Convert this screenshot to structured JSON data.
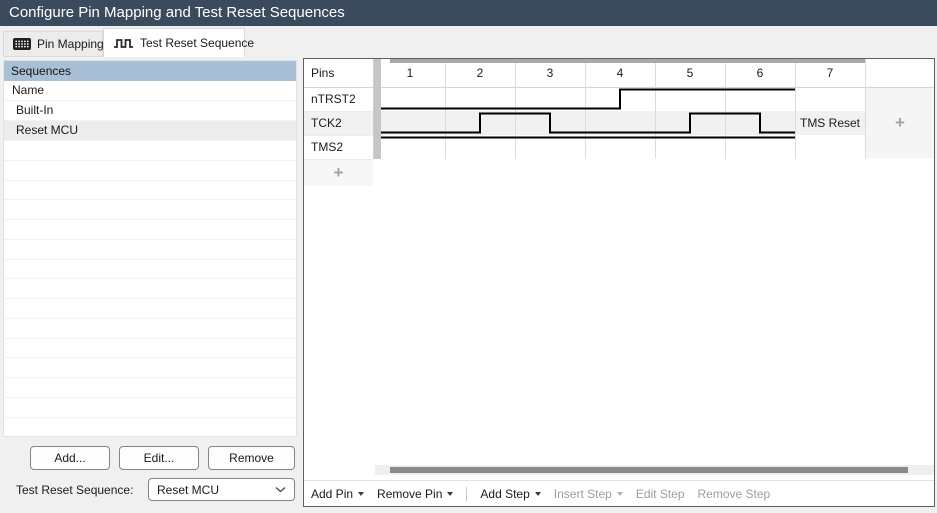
{
  "title_bar": {
    "title": "Configure Pin Mapping and Test Reset Sequences"
  },
  "tabs": [
    {
      "label": "Pin Mapping",
      "icon": "pin-grid-icon",
      "active": false
    },
    {
      "label": "Test Reset Sequence",
      "icon": "waveform-icon",
      "active": true
    }
  ],
  "sequences_panel": {
    "header": "Sequences",
    "column_header": "Name",
    "items": [
      {
        "label": "Built-In",
        "selected": false
      },
      {
        "label": "Reset MCU",
        "selected": true
      }
    ],
    "empty_rows": 15,
    "buttons": {
      "add": "Add...",
      "edit": "Edit...",
      "remove": "Remove"
    },
    "selector": {
      "label": "Test Reset Sequence:",
      "value": "Reset MCU"
    }
  },
  "waveform_panel": {
    "pins_header": "Pins",
    "steps": [
      "1",
      "2",
      "3",
      "4",
      "5",
      "6",
      "7"
    ],
    "pins": [
      {
        "name": "nTRST2",
        "levels": [
          0,
          0,
          0,
          1,
          1,
          1
        ]
      },
      {
        "name": "TCK2",
        "levels": [
          0,
          1,
          0,
          0,
          1,
          0
        ]
      },
      {
        "name": "TMS2",
        "levels": [
          1,
          1,
          1,
          1,
          1,
          1
        ]
      }
    ],
    "step7_label": "TMS Reset",
    "add_pin_plus": "+",
    "add_step_plus": "+",
    "toolbar": [
      {
        "label": "Add Pin",
        "dropdown": true,
        "enabled": true,
        "separator_before": false
      },
      {
        "label": "Remove Pin",
        "dropdown": true,
        "enabled": true,
        "separator_before": false
      },
      {
        "label": "Add Step",
        "dropdown": true,
        "enabled": true,
        "separator_before": true
      },
      {
        "label": "Insert Step",
        "dropdown": true,
        "enabled": false,
        "separator_before": false
      },
      {
        "label": "Edit Step",
        "dropdown": false,
        "enabled": false,
        "separator_before": false
      },
      {
        "label": "Remove Step",
        "dropdown": false,
        "enabled": false,
        "separator_before": false
      }
    ]
  },
  "colors": {
    "titlebar_bg": "#3b4a5c",
    "list_header_bg": "#a8bfd6",
    "selected_row_bg": "#ececec",
    "scrollbar_thumb": "#8a8a8a",
    "disabled_text": "#9d9d9d",
    "wave_stroke": "#000000"
  }
}
